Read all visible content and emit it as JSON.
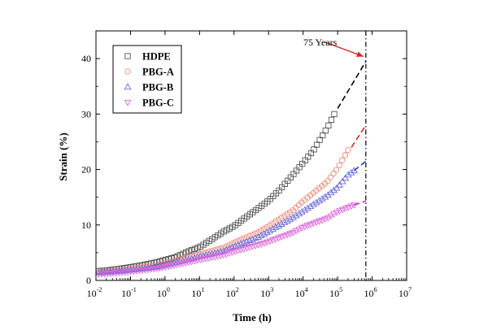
{
  "chart_data": {
    "type": "scatter",
    "xscale": "log",
    "xlabel": "Time (h)",
    "ylabel": "Strain (%)",
    "xlim": [
      0.01,
      10000000
    ],
    "ylim": [
      0,
      45
    ],
    "x_tick_labels": [
      {
        "base": "10",
        "exp": "-2"
      },
      {
        "base": "10",
        "exp": "-1"
      },
      {
        "base": "10",
        "exp": "0"
      },
      {
        "base": "10",
        "exp": "1"
      },
      {
        "base": "10",
        "exp": "2"
      },
      {
        "base": "10",
        "exp": "3"
      },
      {
        "base": "10",
        "exp": "4"
      },
      {
        "base": "10",
        "exp": "5"
      },
      {
        "base": "10",
        "exp": "6"
      },
      {
        "base": "10",
        "exp": "7"
      }
    ],
    "y_tick_labels": [
      "0",
      "10",
      "20",
      "30",
      "40"
    ],
    "y_ticks": [
      0,
      10,
      20,
      30,
      40
    ],
    "legend_position": "top-left",
    "annotation": {
      "text": "75 Years",
      "x": 657000
    },
    "series": [
      {
        "name": "HDPE",
        "marker": "square",
        "color": "#555555",
        "measured": [
          [
            0.012,
            1.7
          ],
          [
            0.02,
            1.8
          ],
          [
            0.05,
            2.1
          ],
          [
            0.1,
            2.4
          ],
          [
            0.2,
            2.7
          ],
          [
            0.5,
            3.2
          ],
          [
            1,
            3.7
          ],
          [
            2,
            4.2
          ],
          [
            5,
            5.3
          ],
          [
            10,
            6.0
          ],
          [
            20,
            7.2
          ],
          [
            50,
            8.8
          ],
          [
            100,
            9.8
          ],
          [
            200,
            11.2
          ],
          [
            500,
            13.0
          ],
          [
            1000,
            14.4
          ],
          [
            2000,
            16.2
          ],
          [
            5000,
            19.0
          ],
          [
            10000,
            21.2
          ],
          [
            20000,
            23.5
          ],
          [
            50000,
            27.5
          ],
          [
            80000,
            30.0
          ]
        ],
        "extrapolated": [
          [
            100000,
            31.0
          ],
          [
            657000,
            39.5
          ]
        ]
      },
      {
        "name": "PBG-A",
        "marker": "circle",
        "color": "#ee8877",
        "measured": [
          [
            0.012,
            1.5
          ],
          [
            0.05,
            1.8
          ],
          [
            0.1,
            2.1
          ],
          [
            0.5,
            2.7
          ],
          [
            1,
            3.1
          ],
          [
            5,
            4.2
          ],
          [
            10,
            4.7
          ],
          [
            50,
            5.9
          ],
          [
            100,
            6.8
          ],
          [
            500,
            8.7
          ],
          [
            1000,
            9.8
          ],
          [
            5000,
            12.6
          ],
          [
            10000,
            14.3
          ],
          [
            50000,
            17.8
          ],
          [
            100000,
            20.2
          ],
          [
            200000,
            23.5
          ]
        ],
        "extrapolated": [
          [
            250000,
            24.0
          ],
          [
            657000,
            28.0
          ]
        ]
      },
      {
        "name": "PBG-B",
        "marker": "triangle-up",
        "color": "#6666dd",
        "measured": [
          [
            0.012,
            1.4
          ],
          [
            0.05,
            1.7
          ],
          [
            0.1,
            1.9
          ],
          [
            0.5,
            2.4
          ],
          [
            1,
            2.8
          ],
          [
            5,
            3.8
          ],
          [
            10,
            4.3
          ],
          [
            50,
            5.3
          ],
          [
            100,
            6.1
          ],
          [
            500,
            7.8
          ],
          [
            1000,
            8.8
          ],
          [
            5000,
            11.3
          ],
          [
            10000,
            12.5
          ],
          [
            50000,
            15.3
          ],
          [
            100000,
            16.8
          ],
          [
            200000,
            19.0
          ],
          [
            300000,
            19.8
          ]
        ],
        "extrapolated": [
          [
            300000,
            19.8
          ],
          [
            657000,
            21.5
          ]
        ]
      },
      {
        "name": "PBG-C",
        "marker": "triangle-down",
        "color": "#dd66dd",
        "measured": [
          [
            0.012,
            1.1
          ],
          [
            0.05,
            1.4
          ],
          [
            0.1,
            1.6
          ],
          [
            0.5,
            2.1
          ],
          [
            1,
            2.4
          ],
          [
            5,
            3.3
          ],
          [
            10,
            3.7
          ],
          [
            50,
            4.6
          ],
          [
            100,
            5.2
          ],
          [
            500,
            6.4
          ],
          [
            1000,
            7.0
          ],
          [
            5000,
            8.6
          ],
          [
            10000,
            9.6
          ],
          [
            50000,
            11.2
          ],
          [
            100000,
            12.4
          ],
          [
            300000,
            13.6
          ]
        ],
        "extrapolated": [
          [
            300000,
            13.6
          ],
          [
            657000,
            14.3
          ]
        ]
      }
    ]
  }
}
